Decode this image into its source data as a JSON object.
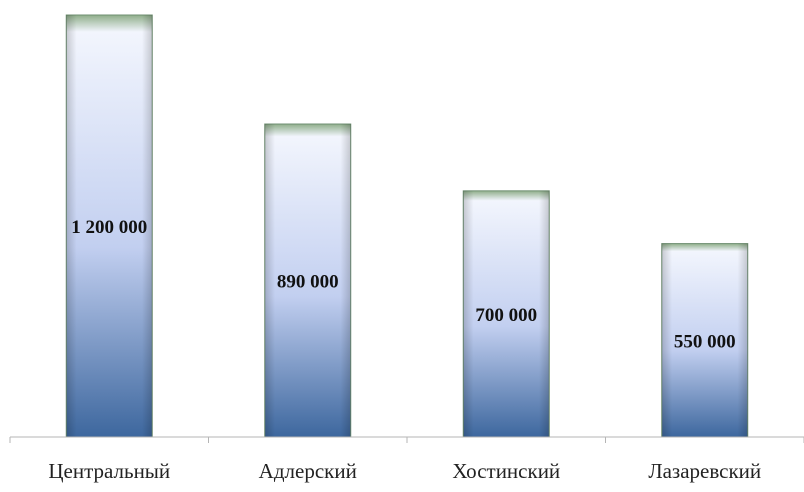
{
  "chart_data": {
    "type": "bar",
    "title": "",
    "xlabel": "",
    "ylabel": "",
    "categories": [
      "Центральный",
      "Адлерский",
      "Хостинский",
      "Лазаревский"
    ],
    "values": [
      1200000,
      890000,
      700000,
      550000
    ],
    "data_labels": [
      "1 200 000",
      "890 000",
      "700 000",
      "550 000"
    ],
    "ylim": [
      0,
      1200000
    ],
    "grid": false,
    "legend": "none",
    "colors": {
      "bar_top": "#8fae8a",
      "bar_light": "#f2f5fd",
      "bar_mid": "#c2cff0",
      "bar_bottom": "#3d679e",
      "bar_edge": "#6f8f72",
      "axis": "#b5b5b5"
    }
  }
}
